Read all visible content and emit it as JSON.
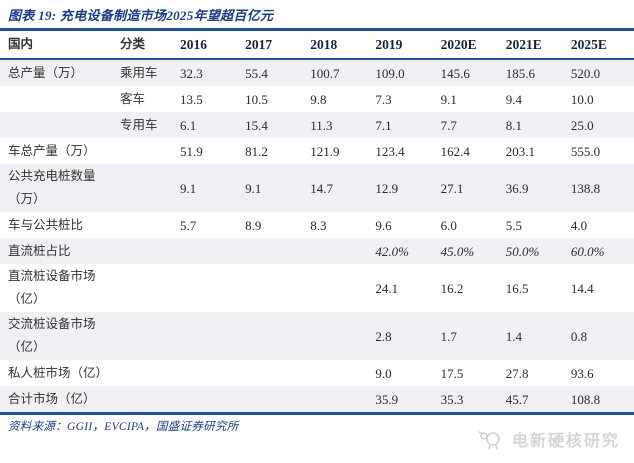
{
  "figure": {
    "caption": "图表 19: 充电设备制造市场2025年望超百亿元"
  },
  "table": {
    "headers": [
      "国内",
      "分类",
      "2016",
      "2017",
      "2018",
      "2019",
      "2020E",
      "2021E",
      "2025E"
    ],
    "rows": [
      {
        "label": "总产量（万）",
        "category": "乘用车",
        "values": [
          "32.3",
          "55.4",
          "100.7",
          "109.0",
          "145.6",
          "185.6",
          "520.0"
        ]
      },
      {
        "label": "",
        "category": "客车",
        "values": [
          "13.5",
          "10.5",
          "9.8",
          "7.3",
          "9.1",
          "9.4",
          "10.0"
        ]
      },
      {
        "label": "",
        "category": "专用车",
        "values": [
          "6.1",
          "15.4",
          "11.3",
          "7.1",
          "7.7",
          "8.1",
          "25.0"
        ]
      },
      {
        "label": "车总产量（万）",
        "category": "",
        "values": [
          "51.9",
          "81.2",
          "121.9",
          "123.4",
          "162.4",
          "203.1",
          "555.0"
        ]
      },
      {
        "label": "公共充电桩数量（万）",
        "category": "",
        "values": [
          "9.1",
          "9.1",
          "14.7",
          "12.9",
          "27.1",
          "36.9",
          "138.8"
        ]
      },
      {
        "label": "车与公共桩比",
        "category": "",
        "values": [
          "5.7",
          "8.9",
          "8.3",
          "9.6",
          "6.0",
          "5.5",
          "4.0"
        ]
      },
      {
        "label": "直流桩占比",
        "category": "",
        "values": [
          "",
          "",
          "",
          "42.0%",
          "45.0%",
          "50.0%",
          "60.0%"
        ],
        "emphasis": "italic"
      },
      {
        "label": "直流桩设备市场（亿）",
        "category": "",
        "values": [
          "",
          "",
          "",
          "24.1",
          "16.2",
          "16.5",
          "14.4"
        ]
      },
      {
        "label": "交流桩设备市场（亿）",
        "category": "",
        "values": [
          "",
          "",
          "",
          "2.8",
          "1.7",
          "1.4",
          "0.8"
        ]
      },
      {
        "label": "私人桩市场（亿）",
        "category": "",
        "values": [
          "",
          "",
          "",
          "9.0",
          "17.5",
          "27.8",
          "93.6"
        ]
      },
      {
        "label": "合计市场（亿）",
        "category": "",
        "values": [
          "",
          "",
          "",
          "35.9",
          "35.3",
          "45.7",
          "108.8"
        ]
      }
    ]
  },
  "footer": {
    "source": "资料来源：GGII，EVCIPA，国盛证券研究所"
  },
  "watermark": {
    "label": "电新硬核研究",
    "icon": "sheep-logo-icon"
  },
  "colors": {
    "accent_navy": "#24509B",
    "caption_text": "#1C3B87",
    "header_text": "#16213C",
    "value_text": "#2B2B2B",
    "row_band": "#F1F1F5",
    "watermark_gray": "#D6D6D6"
  }
}
